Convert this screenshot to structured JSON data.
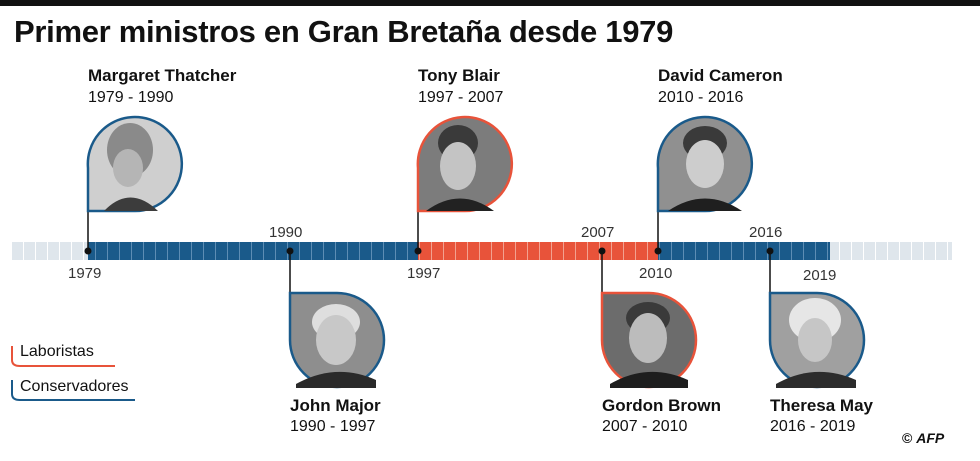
{
  "title": "Primer ministros en Gran Bretaña desde 1979",
  "colors": {
    "labour": "#e8533a",
    "conservative": "#1a5a8a",
    "track": "#dfe6ec",
    "text": "#111111"
  },
  "ministers": [
    {
      "name": "Margaret Thatcher",
      "years": "1979 - 1990",
      "party": "conservative"
    },
    {
      "name": "John Major",
      "years": "1990 - 1997",
      "party": "conservative"
    },
    {
      "name": "Tony Blair",
      "years": "1997 - 2007",
      "party": "labour"
    },
    {
      "name": "Gordon Brown",
      "years": "2007 - 2010",
      "party": "labour"
    },
    {
      "name": "David Cameron",
      "years": "2010 - 2016",
      "party": "conservative"
    },
    {
      "name": "Theresa May",
      "years": "2016 - 2019",
      "party": "conservative"
    }
  ],
  "timeline": {
    "start": 1979,
    "end": 2019,
    "year_labels": [
      "1979",
      "1990",
      "1997",
      "2007",
      "2010",
      "2016",
      "2019"
    ]
  },
  "legend": {
    "labour": "Laboristas",
    "conservative": "Conservadores"
  },
  "credit": {
    "symbol": "©",
    "agency": "AFP"
  }
}
